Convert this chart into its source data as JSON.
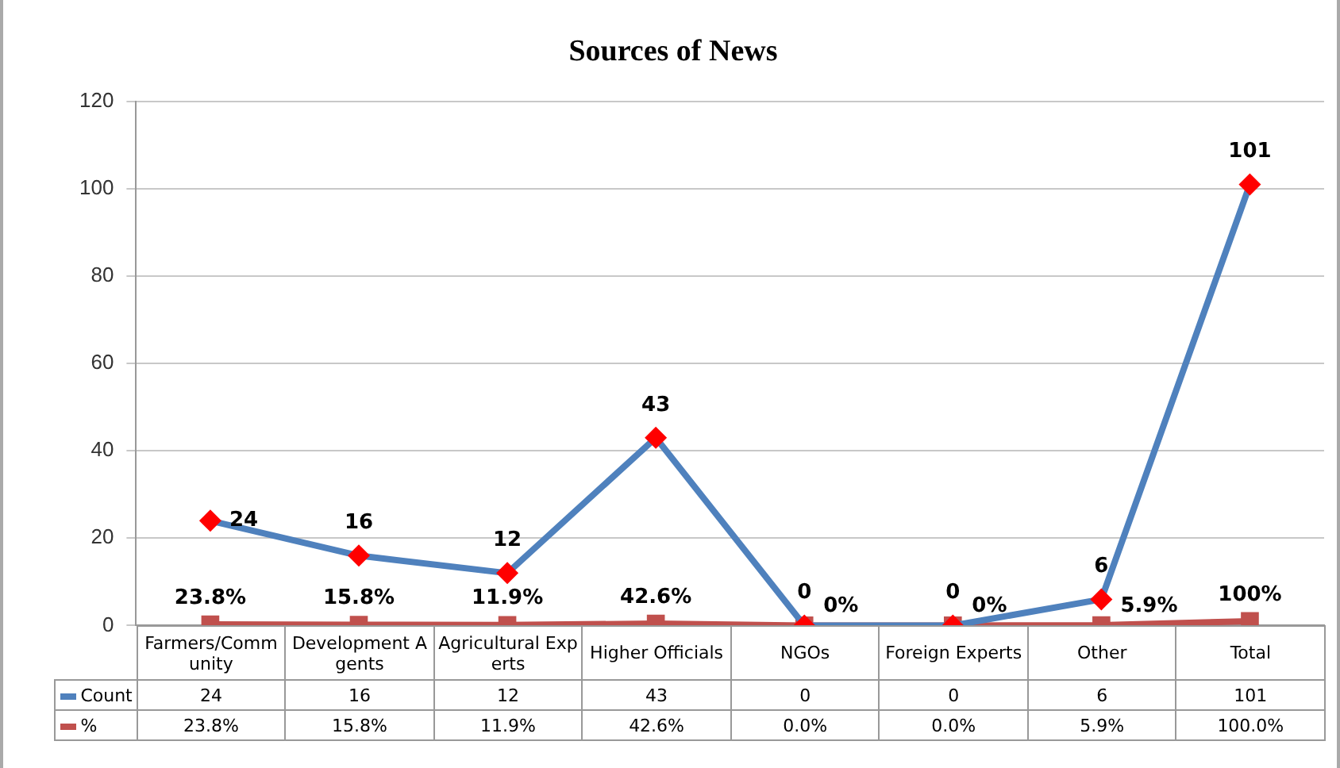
{
  "chart_data": {
    "type": "line",
    "title": "Sources of News",
    "categories": [
      "Farmers/Community",
      "Development Agents",
      "Agricultural Experts",
      "Higher Officials",
      "NGOs",
      "Foreign Experts",
      "Other",
      "Total"
    ],
    "series": [
      {
        "name": "Count",
        "color": "#4f81bd",
        "colors": [
          "#ff0000",
          "#ff0000",
          "#ff0000",
          "#ff0000",
          "#ff0000",
          "#ff0000",
          "#ff0000",
          "#ff0000"
        ],
        "marker": "diamond",
        "values": [
          24,
          16,
          12,
          43,
          0,
          0,
          6,
          101
        ],
        "value_labels": [
          "24",
          "16",
          "12",
          "43",
          "0",
          "0",
          "6",
          "101"
        ]
      },
      {
        "name": "%",
        "color": "#c0504d",
        "marker": "square",
        "values": [
          0.238,
          0.158,
          0.119,
          0.426,
          0,
          0,
          0.059,
          1
        ],
        "value_labels": [
          "23.8%",
          "15.8%",
          "11.9%",
          "42.6%",
          "0%",
          "0%",
          "5.9%",
          "100%"
        ]
      }
    ],
    "annotations": [
      "24",
      "16",
      "12",
      "43",
      "0",
      "0",
      "6",
      "101",
      "23.8%",
      "15.8%",
      "11.9%",
      "42.6%",
      "0.0%",
      "0.0%",
      "5.9%",
      "100.0%"
    ],
    "ylim": [
      0,
      120
    ],
    "yticks": [
      0,
      20,
      40,
      60,
      80,
      100,
      120
    ],
    "grid": "y",
    "legend": "bottom left",
    "tick_labels": "y"
  }
}
